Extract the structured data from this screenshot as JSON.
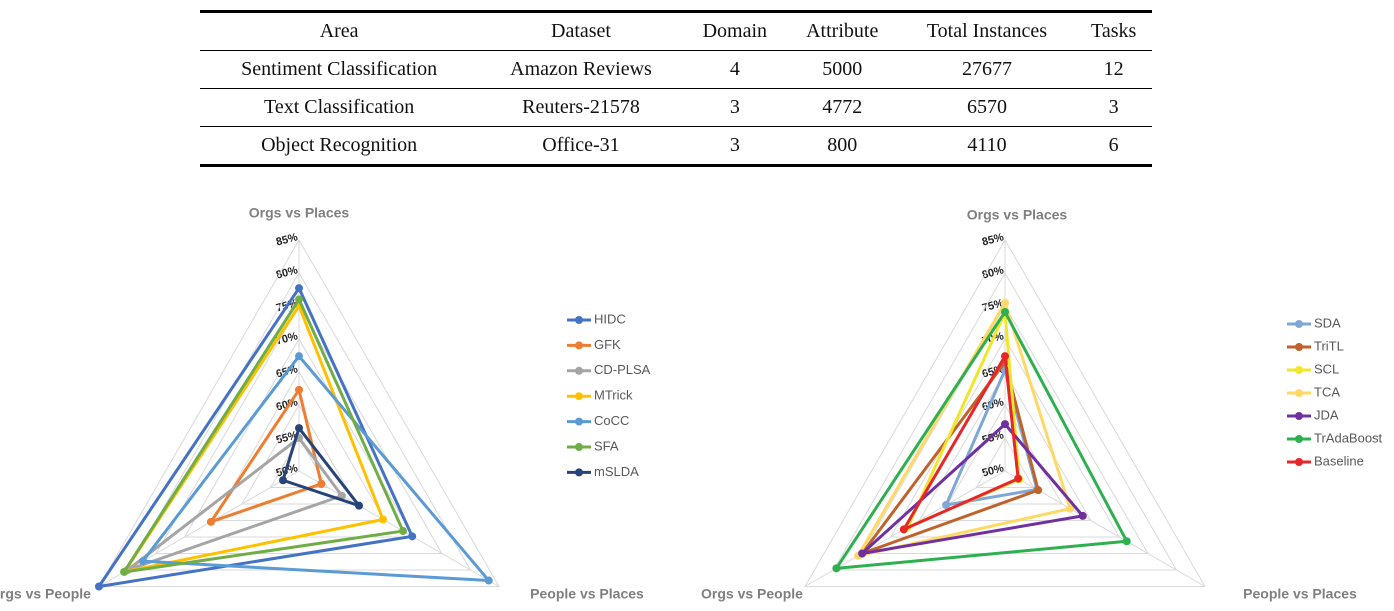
{
  "table": {
    "header": [
      "Area",
      "Dataset",
      "Domain",
      "Attribute",
      "Total Instances",
      "Tasks"
    ],
    "rows": [
      [
        "Sentiment Classification",
        "Amazon Reviews",
        "4",
        "5000",
        "27677",
        "12"
      ],
      [
        "Text Classification",
        "Reuters-21578",
        "3",
        "4772",
        "6570",
        "3"
      ],
      [
        "Object Recognition",
        "Office-31",
        "3",
        "800",
        "4110",
        "6"
      ]
    ]
  },
  "chart_data": [
    {
      "type": "radar",
      "categories": [
        "Orgs vs Places",
        "People vs Places",
        "Orgs vs People"
      ],
      "ylim": [
        50,
        85
      ],
      "yticks": [
        {
          "value": 50,
          "label": "50%"
        },
        {
          "value": 55,
          "label": "55%"
        },
        {
          "value": 60,
          "label": "60%"
        },
        {
          "value": 65,
          "label": "65%"
        },
        {
          "value": 70,
          "label": "70%"
        },
        {
          "value": 75,
          "label": "75%"
        },
        {
          "value": 80,
          "label": "80%"
        },
        {
          "value": 85,
          "label": "85%"
        }
      ],
      "grid": true,
      "legend": "right",
      "series": [
        {
          "name": "HIDC",
          "color": "#4472c4",
          "values": [
            77.7,
            69.8,
            85
          ]
        },
        {
          "name": "GFK",
          "color": "#ed7d31",
          "values": [
            62.3,
            53.9,
            65.4
          ]
        },
        {
          "name": "CD-PLSA",
          "color": "#a5a5a5",
          "values": [
            55,
            57.5,
            80
          ]
        },
        {
          "name": "MTrick",
          "color": "#ffc000",
          "values": [
            75,
            64.7,
            80.5
          ]
        },
        {
          "name": "CoCC",
          "color": "#5b9bd5",
          "values": [
            67.4,
            83.2,
            77.3
          ]
        },
        {
          "name": "SFA",
          "color": "#70ad47",
          "values": [
            76,
            68.2,
            80.6
          ]
        },
        {
          "name": "mSLDA",
          "color": "#264478",
          "values": [
            56.5,
            60.5,
            52.8
          ]
        }
      ]
    },
    {
      "type": "radar",
      "categories": [
        "Orgs vs Places",
        "People vs Places",
        "Orgs vs People"
      ],
      "ylim": [
        50,
        85
      ],
      "yticks": [
        {
          "value": 50,
          "label": "50%"
        },
        {
          "value": 55,
          "label": "55%"
        },
        {
          "value": 60,
          "label": "60%"
        },
        {
          "value": 65,
          "label": "65%"
        },
        {
          "value": 70,
          "label": "70%"
        },
        {
          "value": 75,
          "label": "75%"
        },
        {
          "value": 80,
          "label": "80%"
        },
        {
          "value": 85,
          "label": "85%"
        }
      ],
      "grid": true,
      "legend": "right",
      "series": [
        {
          "name": "SDA",
          "color": "#7fa7d6",
          "values": [
            65.3,
            55.6,
            60.3
          ]
        },
        {
          "name": "TriTL",
          "color": "#c0622b",
          "values": [
            66.5,
            55.8,
            75
          ]
        },
        {
          "name": "SCL",
          "color": "#f2e52a",
          "values": [
            74,
            52.5,
            67
          ]
        },
        {
          "name": "TCA",
          "color": "#ffd966",
          "values": [
            75.5,
            61.4,
            75.7
          ]
        },
        {
          "name": "JDA",
          "color": "#7030a0",
          "values": [
            57.1,
            63.6,
            75
          ]
        },
        {
          "name": "TrAdaBoost",
          "color": "#2eb050",
          "values": [
            74.1,
            71.3,
            79.5
          ]
        },
        {
          "name": "Baseline",
          "color": "#e8262a",
          "values": [
            67.4,
            52.3,
            67.7
          ]
        }
      ]
    }
  ]
}
